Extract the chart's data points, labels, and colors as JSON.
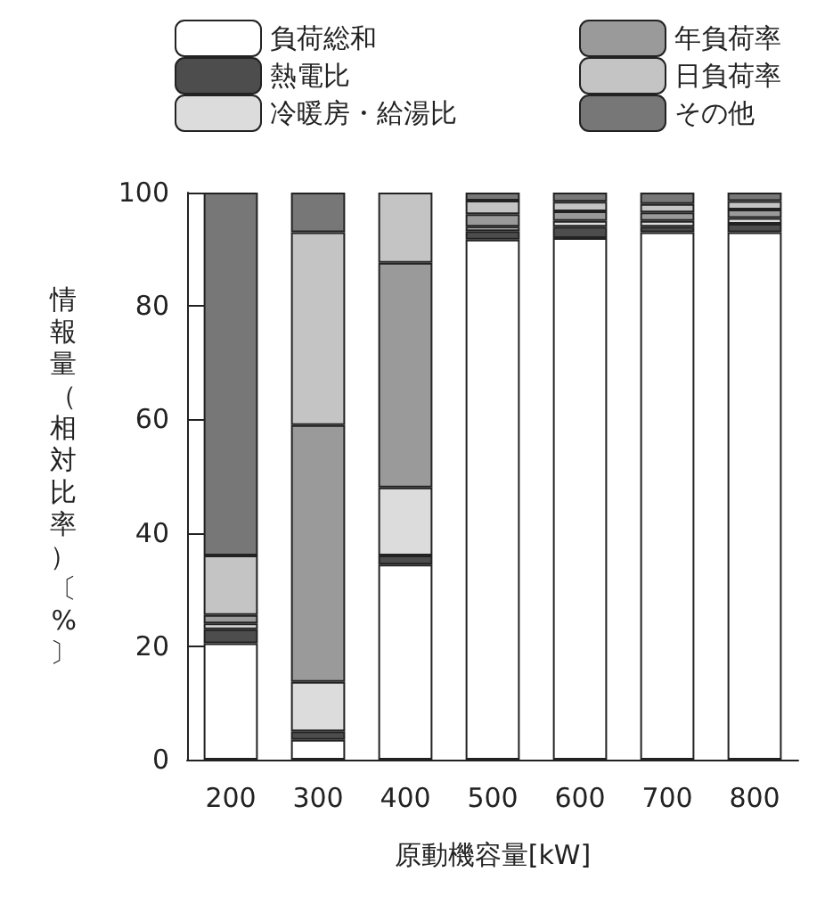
{
  "chart_data": {
    "type": "bar",
    "stacked": true,
    "categories": [
      "200",
      "300",
      "400",
      "500",
      "600",
      "700",
      "800"
    ],
    "xlabel": "原動機容量[kW]",
    "ylabel": "情報量（相対比率）〔%〕",
    "ylim": [
      0,
      100
    ],
    "yticks": [
      0,
      20,
      40,
      60,
      80,
      100
    ],
    "grid": false,
    "legend": "top",
    "series": [
      {
        "name": "負荷総和",
        "color": "#ffffff",
        "values": [
          20.5,
          3.5,
          34.4,
          91.7,
          92,
          93,
          93
        ]
      },
      {
        "name": "熱電比",
        "color": "#4d4d4d",
        "values": [
          2.5,
          1.5,
          1.6,
          1.5,
          2,
          1,
          1.5
        ]
      },
      {
        "name": "冷暖房・給湯比",
        "color": "#dcdcdc",
        "values": [
          1,
          8.7,
          12,
          0.8,
          1,
          1,
          1
        ]
      },
      {
        "name": "年負荷率",
        "color": "#9a9a9a",
        "values": [
          1.5,
          45.3,
          39.6,
          2.2,
          1.7,
          1.5,
          1.5
        ]
      },
      {
        "name": "日負荷率",
        "color": "#c4c4c4",
        "values": [
          10.5,
          34,
          12.4,
          2.4,
          1.7,
          1.5,
          1.5
        ]
      },
      {
        "name": "その他",
        "color": "#777777",
        "values": [
          64,
          7,
          0,
          1.4,
          1.6,
          2,
          1.5
        ]
      }
    ]
  }
}
